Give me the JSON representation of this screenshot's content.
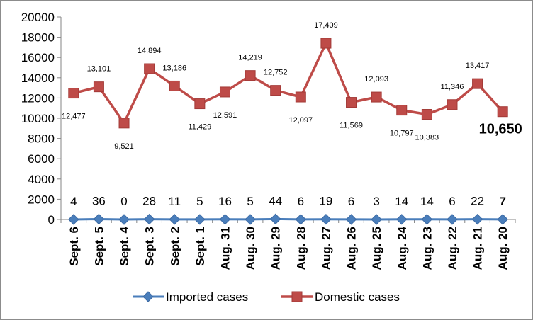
{
  "chart_data": {
    "type": "line",
    "categories": [
      "Sept. 6",
      "Sept. 5",
      "Sept. 4",
      "Sept. 3",
      "Sept. 2",
      "Sept. 1",
      "Aug. 31",
      "Aug. 30",
      "Aug. 29",
      "Aug. 28",
      "Aug. 27",
      "Aug. 26",
      "Aug. 25",
      "Aug. 24",
      "Aug. 23",
      "Aug. 22",
      "Aug. 21",
      "Aug. 20"
    ],
    "series": [
      {
        "name": "Imported cases",
        "color": "#4a7ebb",
        "marker": "diamond",
        "values": [
          4,
          36,
          0,
          28,
          11,
          5,
          16,
          5,
          44,
          6,
          19,
          6,
          3,
          14,
          14,
          6,
          22,
          7
        ],
        "labels": [
          "4",
          "36",
          "0",
          "28",
          "11",
          "5",
          "16",
          "5",
          "44",
          "6",
          "19",
          "6",
          "3",
          "14",
          "14",
          "6",
          "22",
          "7"
        ]
      },
      {
        "name": "Domestic cases",
        "color": "#be4b48",
        "marker": "square",
        "values": [
          12477,
          13101,
          9521,
          14894,
          13186,
          11429,
          12591,
          14219,
          12752,
          12097,
          17409,
          11569,
          12093,
          10797,
          10383,
          11346,
          13417,
          10650
        ],
        "labels": [
          "12,477",
          "13,101",
          "9,521",
          "14,894",
          "13,186",
          "11,429",
          "12,591",
          "14,219",
          "12,752",
          "12,097",
          "17,409",
          "11,569",
          "12,093",
          "10,797",
          "10,383",
          "11,346",
          "13,417",
          "10,650"
        ]
      }
    ],
    "yticks": [
      "0",
      "2000",
      "4000",
      "6000",
      "8000",
      "10000",
      "12000",
      "14000",
      "16000",
      "18000",
      "20000"
    ],
    "ylim": [
      0,
      20000
    ],
    "grid": false,
    "legend": "bottom",
    "xlabel": "",
    "ylabel": "",
    "title": ""
  }
}
